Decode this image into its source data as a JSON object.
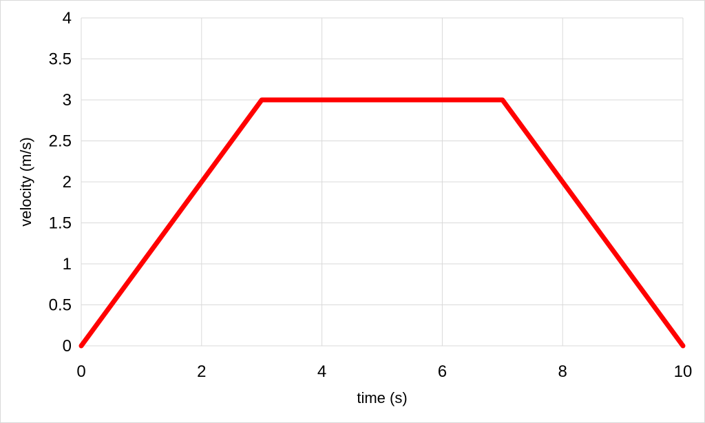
{
  "chart_data": {
    "type": "line",
    "title": "",
    "xlabel": "time (s)",
    "ylabel": "velocity (m/s)",
    "xlim": [
      0,
      10
    ],
    "ylim": [
      0,
      4
    ],
    "xticks": [
      0,
      2,
      4,
      6,
      8,
      10
    ],
    "yticks": [
      0,
      0.5,
      1,
      1.5,
      2,
      2.5,
      3,
      3.5,
      4
    ],
    "grid": true,
    "legend": "none",
    "series": [
      {
        "color": "#ff0000",
        "x": [
          0,
          3,
          7,
          10
        ],
        "y": [
          0,
          3,
          3,
          0
        ]
      }
    ]
  },
  "colors": {
    "series_line": "#ff0000",
    "gridline": "#d9d9d9",
    "frame": "#d9d9d9",
    "text": "#000000"
  }
}
